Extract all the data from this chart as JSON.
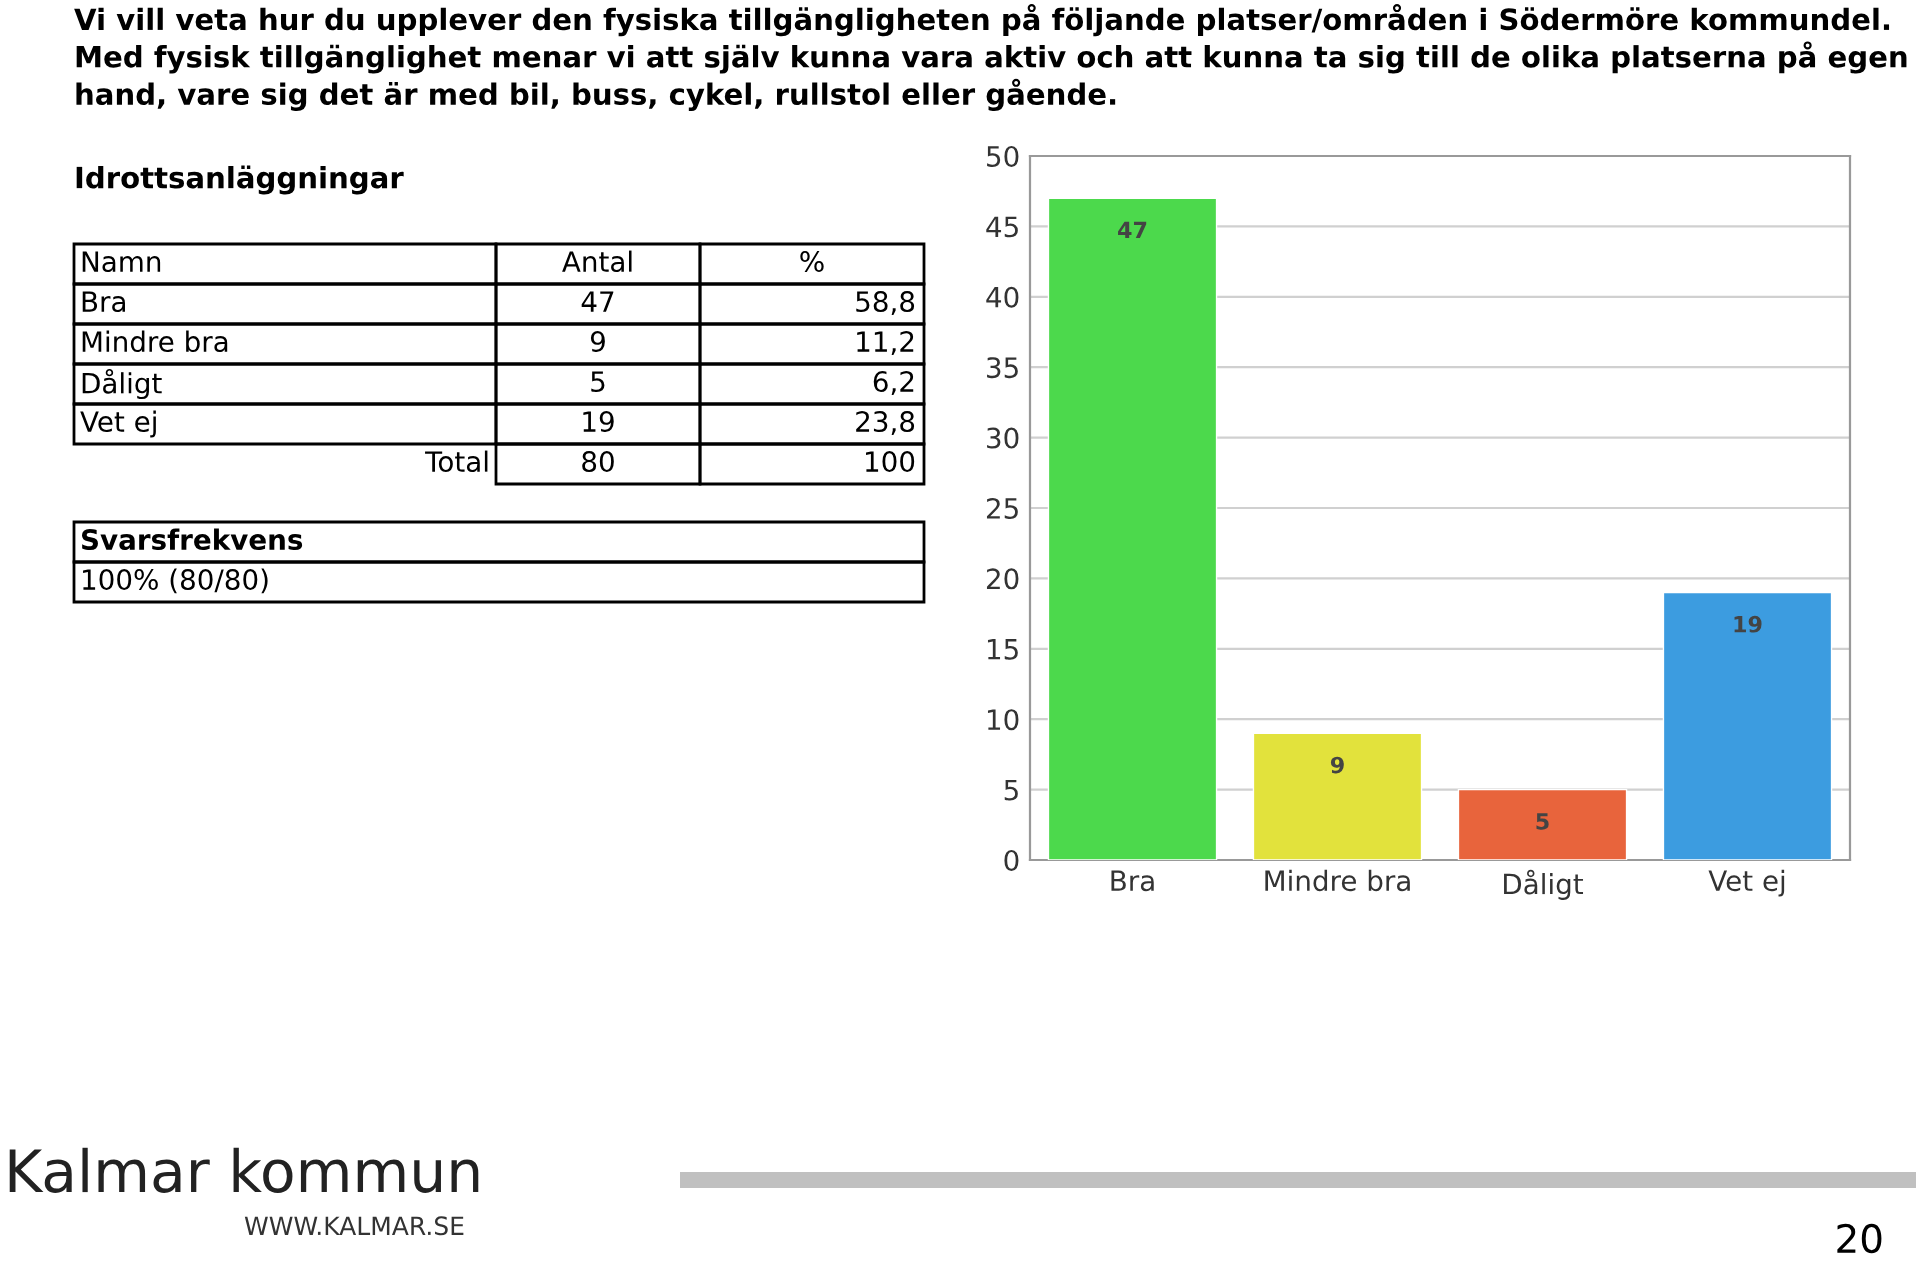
{
  "chart_data": {
    "type": "bar",
    "title": "Vi vill veta hur du upplever den fysiska tillgängligheten på följande platser/områden i Södermöre kommundel. Med fysisk tillgänglighet menar vi att själv kunna vara aktiv och att kunna ta sig till de olika platserna på egen hand, vare sig det är med bil, buss, cykel, rullstol eller gående.",
    "subtitle": "Idrottsanläggningar",
    "categories": [
      "Bra",
      "Mindre bra",
      "Dåligt",
      "Vet ej"
    ],
    "values": [
      47,
      9,
      5,
      19
    ],
    "colors": [
      "#4cd94c",
      "#e2e23c",
      "#e8643c",
      "#3c9ce0"
    ],
    "ylim": [
      0,
      50
    ],
    "yticks": [
      0,
      5,
      10,
      15,
      20,
      25,
      30,
      35,
      40,
      45,
      50
    ],
    "grid": "y",
    "data_labels": true,
    "annotations": [
      "Namn",
      "Antal",
      "%",
      "Bra",
      "47",
      "58,8",
      "Mindre bra",
      "9",
      "11,2",
      "Dåligt",
      "5",
      "6,2",
      "Vet ej",
      "19",
      "23,8",
      "Total",
      "80",
      "100",
      "Svarsfrekvens",
      "100% (80/80)",
      "Kalmar kommun",
      "WWW.KALMAR.SE",
      "20"
    ]
  }
}
